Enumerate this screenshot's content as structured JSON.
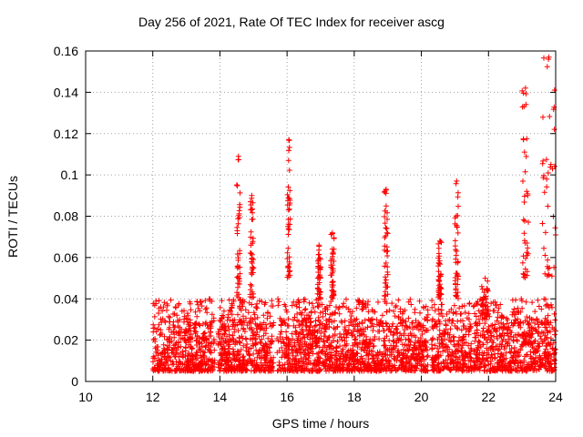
{
  "chart_data": {
    "type": "scatter",
    "title": "Day 256 of 2021, Rate Of TEC Index for receiver ascg",
    "xlabel": "GPS time / hours",
    "ylabel": "ROTI / TECUs",
    "xlim": [
      10,
      24
    ],
    "ylim": [
      0,
      0.16
    ],
    "xticks": [
      "10",
      "12",
      "14",
      "16",
      "18",
      "20",
      "22",
      "24"
    ],
    "yticks": [
      "0",
      "0.02",
      "0.04",
      "0.06",
      "0.08",
      "0.1",
      "0.12",
      "0.14",
      "0.16"
    ],
    "grid": true,
    "marker": "+",
    "color": "#ff0000",
    "data_span_hours": [
      12.0,
      24.0
    ],
    "typical_range": [
      0.005,
      0.03
    ],
    "activity_bursts": [
      {
        "x": [
          14.5,
          14.6
        ],
        "y": [
          0.04,
          0.109
        ]
      },
      {
        "x": [
          14.9,
          15.0
        ],
        "y": [
          0.04,
          0.09
        ]
      },
      {
        "x": [
          16.0,
          16.1
        ],
        "y": [
          0.05,
          0.117
        ]
      },
      {
        "x": [
          16.9,
          17.0
        ],
        "y": [
          0.04,
          0.066
        ]
      },
      {
        "x": [
          17.3,
          17.4
        ],
        "y": [
          0.04,
          0.072
        ]
      },
      {
        "x": [
          18.9,
          19.0
        ],
        "y": [
          0.04,
          0.093
        ]
      },
      {
        "x": [
          20.5,
          20.6
        ],
        "y": [
          0.04,
          0.068
        ]
      },
      {
        "x": [
          21.0,
          21.1
        ],
        "y": [
          0.04,
          0.097
        ]
      },
      {
        "x": [
          21.8,
          22.0
        ],
        "y": [
          0.03,
          0.05
        ]
      },
      {
        "x": [
          23.0,
          23.2
        ],
        "y": [
          0.05,
          0.142
        ]
      },
      {
        "x": [
          23.6,
          24.0
        ],
        "y": [
          0.05,
          0.157
        ]
      }
    ]
  }
}
